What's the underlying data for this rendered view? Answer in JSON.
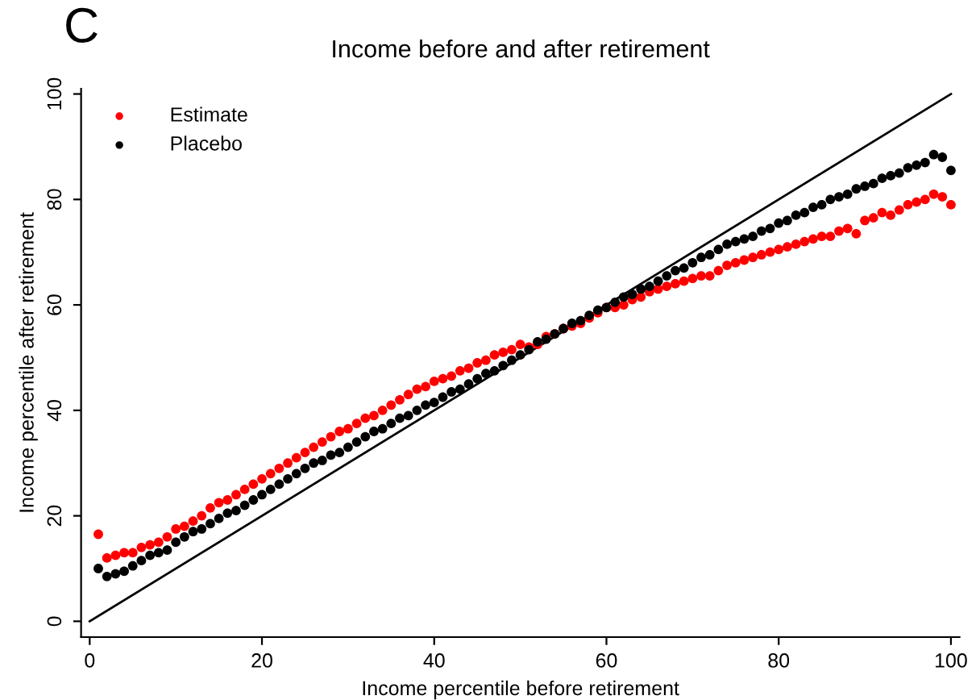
{
  "chart_data": {
    "type": "scatter",
    "title": "Income before and after retirement",
    "xlabel": "Income percentile before retirement",
    "ylabel": "Income percentile after retirement",
    "annotations": [
      "C"
    ],
    "x": [
      1,
      2,
      3,
      4,
      5,
      6,
      7,
      8,
      9,
      10,
      11,
      12,
      13,
      14,
      15,
      16,
      17,
      18,
      19,
      20,
      21,
      22,
      23,
      24,
      25,
      26,
      27,
      28,
      29,
      30,
      31,
      32,
      33,
      34,
      35,
      36,
      37,
      38,
      39,
      40,
      41,
      42,
      43,
      44,
      45,
      46,
      47,
      48,
      49,
      50,
      51,
      52,
      53,
      54,
      55,
      56,
      57,
      58,
      59,
      60,
      61,
      62,
      63,
      64,
      65,
      66,
      67,
      68,
      69,
      70,
      71,
      72,
      73,
      74,
      75,
      76,
      77,
      78,
      79,
      80,
      81,
      82,
      83,
      84,
      85,
      86,
      87,
      88,
      89,
      90,
      91,
      92,
      93,
      94,
      95,
      96,
      97,
      98,
      99,
      100
    ],
    "series": [
      {
        "name": "Estimate",
        "color": "#ff0000",
        "values": [
          16.5,
          12,
          12.5,
          13,
          13,
          14,
          14.5,
          15,
          16,
          17.5,
          18,
          19,
          20,
          21.5,
          22.5,
          23,
          24,
          25,
          26,
          27,
          28,
          29,
          30,
          31,
          32,
          33,
          34,
          35,
          36,
          36.5,
          37.5,
          38.5,
          39,
          40,
          41,
          42,
          43,
          44,
          44.5,
          45.5,
          46,
          46.5,
          47.5,
          48,
          49,
          49.5,
          50.5,
          51,
          51.5,
          52.5,
          52,
          52.5,
          54,
          54.5,
          55.5,
          56,
          56.5,
          57.5,
          58.5,
          59.5,
          59.5,
          60,
          61,
          61.5,
          62.5,
          63,
          63.5,
          64,
          64.5,
          65,
          65.5,
          65.5,
          66.5,
          67.5,
          68,
          68.5,
          69,
          69.5,
          70,
          70.5,
          71,
          71.5,
          72,
          72.5,
          73,
          73,
          74,
          74.5,
          73.5,
          76,
          76.5,
          77.5,
          77,
          78,
          79,
          79.5,
          80,
          81,
          80.5,
          79
        ]
      },
      {
        "name": "Placebo",
        "color": "#000000",
        "values": [
          10,
          8.5,
          9,
          9.5,
          10.5,
          11.5,
          12.5,
          13,
          13.5,
          15,
          16,
          17,
          17.5,
          18.5,
          19.5,
          20.5,
          21,
          22,
          23,
          24,
          25,
          26,
          27,
          28,
          29,
          30,
          30.5,
          31.5,
          32,
          33,
          34,
          35,
          36,
          36.5,
          37.5,
          38.5,
          39,
          40,
          41,
          41.5,
          42.5,
          43.5,
          44,
          45,
          46,
          47,
          47.5,
          48.5,
          49.5,
          50.5,
          51.5,
          53,
          53.5,
          54.5,
          55.5,
          56.5,
          57,
          58,
          59,
          59.5,
          60.5,
          61.5,
          62,
          63,
          63.5,
          64.5,
          65.5,
          66.5,
          67,
          68,
          69,
          69.5,
          70.5,
          71.5,
          72,
          72.5,
          73,
          74,
          74.5,
          75.5,
          76,
          77,
          77.5,
          78.5,
          79,
          80,
          80.5,
          81,
          82,
          82.5,
          83,
          84,
          84.5,
          85,
          86,
          86.5,
          87,
          88.5,
          88,
          85.5
        ]
      },
      {
        "type": "line",
        "color": "#000000",
        "x": [
          0,
          100
        ],
        "values": [
          0,
          100
        ],
        "marker": "none"
      }
    ],
    "marker": "circle",
    "xlim": [
      -1,
      101
    ],
    "ylim": [
      -3,
      101
    ],
    "xticks": [
      0,
      20,
      40,
      60,
      80,
      100
    ],
    "yticks": [
      0,
      20,
      40,
      60,
      80,
      100
    ],
    "grid": false,
    "legend": "top left"
  }
}
